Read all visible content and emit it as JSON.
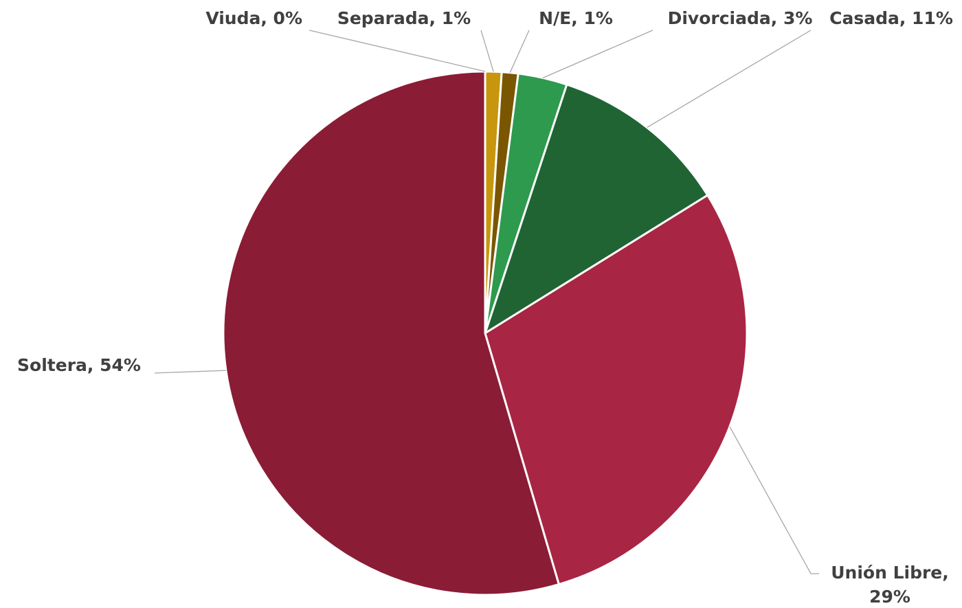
{
  "chart_data": {
    "type": "pie",
    "labels": [
      "Viuda, 0%",
      "Separada, 1%",
      "N/E, 1%",
      "Divorciada, 3%",
      "Casada, 11%",
      "Unión Libre, 29%",
      "Soltera, 54%"
    ],
    "values": [
      0,
      1,
      1,
      3,
      11,
      29,
      54
    ],
    "colors": [
      "#9e7b2f",
      "#c8960c",
      "#7a5600",
      "#2e9a4e",
      "#206434",
      "#a92544",
      "#8b1c35"
    ]
  }
}
